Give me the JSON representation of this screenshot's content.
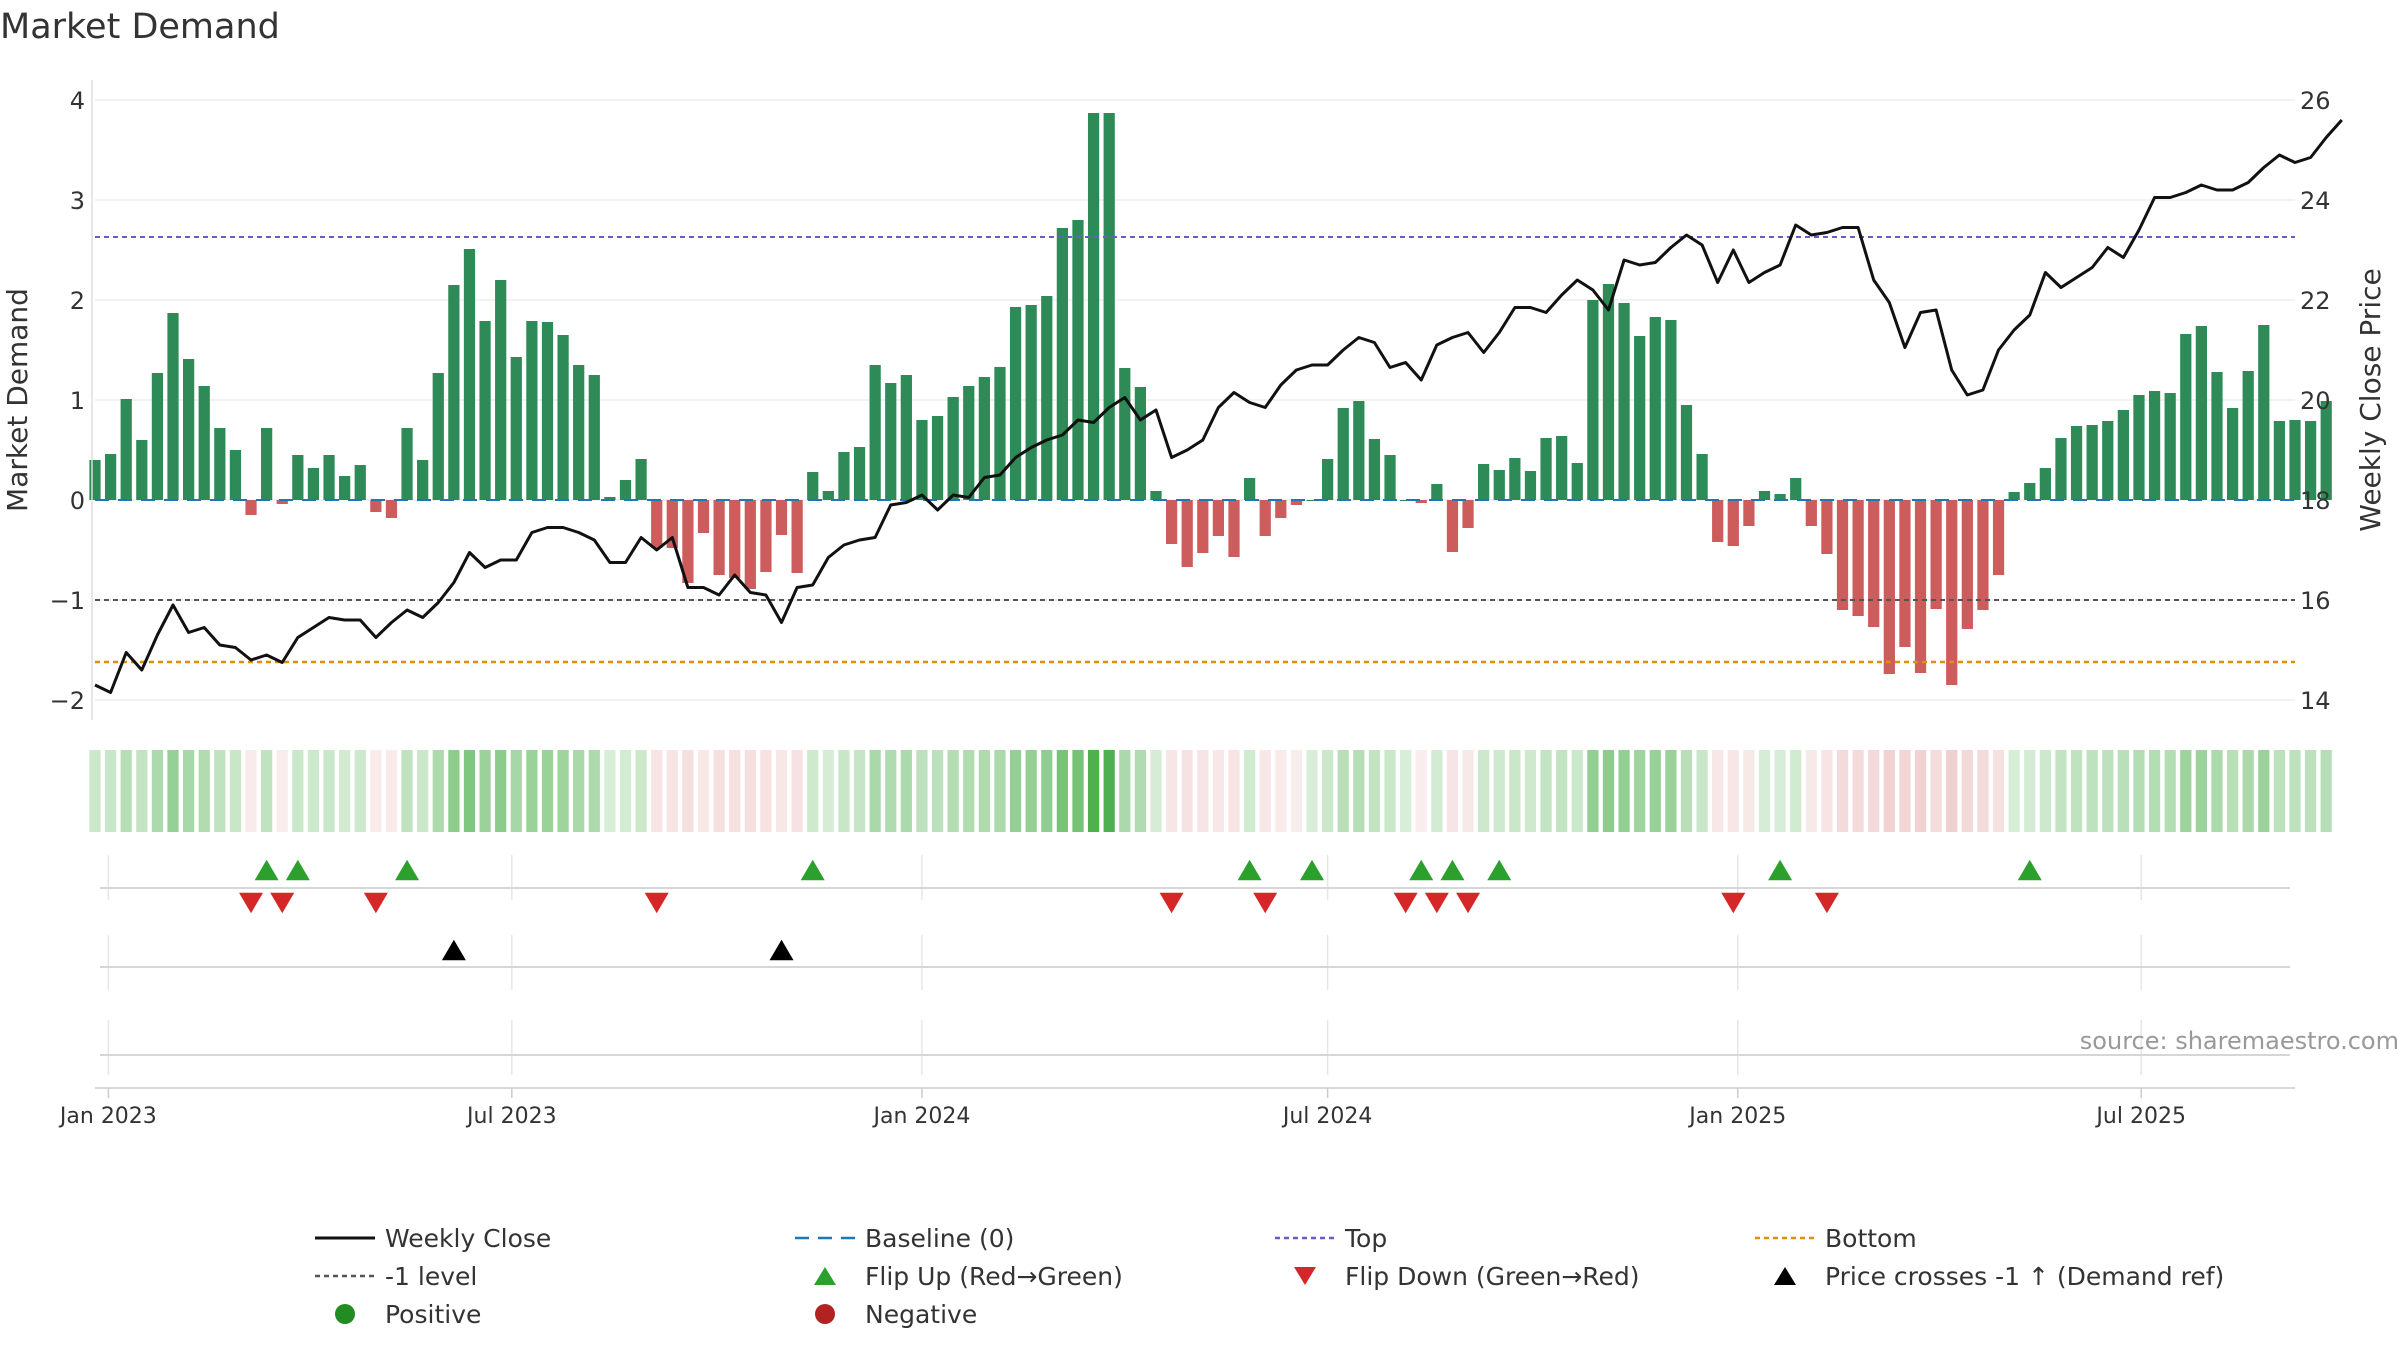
{
  "chart_data": {
    "type": "bar",
    "title": "Market Demand",
    "ylabel": "Market Demand",
    "ylabel_right": "Weekly Close Price",
    "source": "source: sharemaestro.com",
    "ylim": [
      -2.2,
      4.2
    ],
    "ylim_right": [
      13.6,
      26.4
    ],
    "yticks": [
      -2,
      -1,
      0,
      1,
      2,
      3,
      4
    ],
    "yticks_right": [
      14,
      16,
      18,
      20,
      22,
      24,
      26
    ],
    "xticks": [
      {
        "label": "Jan 2023",
        "date": "2023-01-01"
      },
      {
        "label": "Jul 2023",
        "date": "2023-07-01"
      },
      {
        "label": "Jan 2024",
        "date": "2024-01-01"
      },
      {
        "label": "Jul 2024",
        "date": "2024-07-01"
      },
      {
        "label": "Jan 2025",
        "date": "2025-01-01"
      },
      {
        "label": "Jul 2025",
        "date": "2025-07-01"
      }
    ],
    "start_date": "2022-12-26",
    "end_date": "2025-09-08",
    "reference_lines": {
      "top": 2.63,
      "minus_one": -1,
      "bottom": -1.62,
      "baseline": 0
    },
    "demand": [
      0.4,
      0.46,
      1.01,
      0.6,
      1.27,
      1.87,
      1.41,
      1.14,
      0.72,
      0.5,
      -0.15,
      0.72,
      -0.04,
      0.45,
      0.32,
      0.45,
      0.24,
      0.35,
      -0.12,
      -0.18,
      0.72,
      0.4,
      1.27,
      2.15,
      2.51,
      1.79,
      2.2,
      1.43,
      1.79,
      1.78,
      1.65,
      1.35,
      1.25,
      0.03,
      0.2,
      0.41,
      -0.48,
      -0.48,
      -0.83,
      -0.33,
      -0.75,
      -0.78,
      -0.89,
      -0.72,
      -0.35,
      -0.73,
      0.28,
      0.09,
      0.48,
      0.53,
      1.35,
      1.17,
      1.25,
      0.8,
      0.84,
      1.03,
      1.14,
      1.23,
      1.33,
      1.93,
      1.95,
      2.04,
      2.72,
      2.8,
      3.87,
      3.87,
      1.32,
      1.13,
      0.09,
      -0.44,
      -0.67,
      -0.53,
      -0.36,
      -0.57,
      0.22,
      -0.36,
      -0.18,
      -0.05,
      0.0,
      0.41,
      0.92,
      0.99,
      0.61,
      0.45,
      0.0,
      -0.03,
      0.16,
      -0.52,
      -0.28,
      0.36,
      0.3,
      0.42,
      0.29,
      0.62,
      0.64,
      0.37,
      2.0,
      2.16,
      1.97,
      1.64,
      1.83,
      1.8,
      0.95,
      0.46,
      -0.42,
      -0.46,
      -0.26,
      0.09,
      0.06,
      0.22,
      -0.26,
      -0.54,
      -1.1,
      -1.16,
      -1.27,
      -1.74,
      -1.47,
      -1.73,
      -1.09,
      -1.85,
      -1.29,
      -1.1,
      -0.75,
      0.08,
      0.17,
      0.32,
      0.62,
      0.74,
      0.75,
      0.79,
      0.9,
      1.05,
      1.09,
      1.07,
      1.66,
      1.74,
      1.28,
      0.92,
      1.29,
      1.75,
      0.79,
      0.8,
      0.79,
      0.99
    ],
    "weekly_close": [
      14.3,
      14.15,
      14.95,
      14.6,
      15.3,
      15.9,
      15.35,
      15.45,
      15.1,
      15.05,
      14.8,
      14.9,
      14.75,
      15.25,
      15.45,
      15.65,
      15.6,
      15.6,
      15.25,
      15.55,
      15.8,
      15.65,
      15.95,
      16.35,
      16.95,
      16.65,
      16.8,
      16.8,
      17.35,
      17.45,
      17.45,
      17.35,
      17.2,
      16.75,
      16.75,
      17.25,
      17.0,
      17.25,
      16.25,
      16.25,
      16.1,
      16.5,
      16.15,
      16.1,
      15.55,
      16.25,
      16.3,
      16.85,
      17.1,
      17.2,
      17.25,
      17.9,
      17.95,
      18.1,
      17.8,
      18.1,
      18.05,
      18.45,
      18.5,
      18.85,
      19.05,
      19.2,
      19.3,
      19.6,
      19.55,
      19.85,
      20.05,
      19.6,
      19.8,
      18.85,
      19.0,
      19.2,
      19.85,
      20.15,
      19.95,
      19.85,
      20.3,
      20.6,
      20.7,
      20.7,
      21.0,
      21.25,
      21.15,
      20.65,
      20.75,
      20.4,
      21.1,
      21.25,
      21.35,
      20.95,
      21.35,
      21.85,
      21.85,
      21.75,
      22.1,
      22.4,
      22.2,
      21.8,
      22.8,
      22.7,
      22.75,
      23.05,
      23.3,
      23.1,
      22.35,
      23.0,
      22.35,
      22.55,
      22.7,
      23.5,
      23.3,
      23.35,
      23.45,
      23.45,
      22.4,
      21.95,
      21.05,
      21.75,
      21.8,
      20.6,
      20.1,
      20.2,
      21.0,
      21.4,
      21.7,
      22.55,
      22.25,
      22.45,
      22.65,
      23.05,
      22.85,
      23.4,
      24.05,
      24.05,
      24.15,
      24.3,
      24.2,
      24.2,
      24.35,
      24.65,
      24.9,
      24.75,
      24.85,
      25.25,
      25.6
    ],
    "flip_up_weeks": [
      11,
      13,
      20,
      46,
      74,
      78,
      85,
      87,
      90,
      108,
      124
    ],
    "flip_down_weeks": [
      10,
      12,
      18,
      36,
      69,
      75,
      84,
      86,
      88,
      105,
      111
    ],
    "price_cross_weeks": [
      23,
      44
    ],
    "series": [
      {
        "name": "Weekly Close"
      },
      {
        "name": "Baseline (0)"
      },
      {
        "name": "Top"
      },
      {
        "name": "Bottom"
      }
    ],
    "legend": [
      {
        "label": "Weekly Close",
        "kind": "line-solid-black"
      },
      {
        "label": "Baseline (0)",
        "kind": "line-dashed-blue"
      },
      {
        "label": "Top",
        "kind": "line-dotted-purple"
      },
      {
        "label": "Bottom",
        "kind": "line-dotted-orange"
      },
      {
        "label": "-1 level",
        "kind": "line-dotted-gray"
      },
      {
        "label": "Flip Up (Red→Green)",
        "kind": "triangle-up-green"
      },
      {
        "label": "Flip Down (Green→Red)",
        "kind": "triangle-down-red"
      },
      {
        "label": "Price crosses -1 ↑ (Demand ref)",
        "kind": "triangle-up-black"
      },
      {
        "label": "Positive",
        "kind": "dot-green"
      },
      {
        "label": "Negative",
        "kind": "dot-red"
      }
    ],
    "legend_position": "bottom"
  },
  "colors": {
    "positive": "#2e8b57",
    "negative": "#cd5c5c",
    "close": "#111111",
    "baseline": "#1f77b4",
    "top": "#6a5acd",
    "bottom": "#e08e0b",
    "minus_one": "#555555",
    "flip_up": "#2ca02c",
    "flip_down": "#d62728",
    "cross": "#000000",
    "dot_positive": "#228b22",
    "dot_negative": "#b22222",
    "grid": "#e6e6e6",
    "axis_text": "#333333",
    "source_text": "#999999"
  }
}
